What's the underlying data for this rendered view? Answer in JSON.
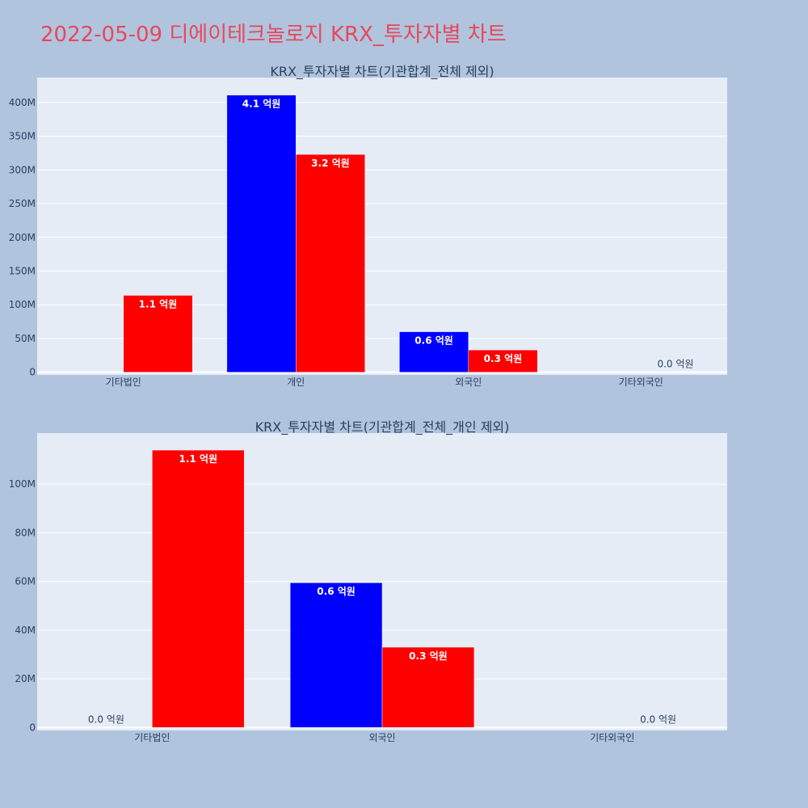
{
  "page": {
    "title": "2022-05-09 디에이테크놀로지 KRX_투자자별 차트",
    "title_color": "#e8485a",
    "background": "#b0c4de"
  },
  "chart_data": [
    {
      "type": "bar",
      "title": "KRX_투자자별 차트(기관합계_전체 제외)",
      "categories": [
        "기타법인",
        "개인",
        "외국인",
        "기타외국인"
      ],
      "y_ticks": [
        0,
        50000000,
        100000000,
        150000000,
        200000000,
        250000000,
        300000000,
        350000000,
        400000000
      ],
      "y_tick_labels": [
        "0",
        "50M",
        "100M",
        "150M",
        "200M",
        "250M",
        "300M",
        "350M",
        "400M"
      ],
      "ylim": [
        -4000000,
        437000000
      ],
      "grid": true,
      "plot_bg": "#e5ecf6",
      "series": [
        {
          "color": "#0000ff",
          "values": [
            0,
            411000000,
            60000000,
            0
          ],
          "labels": [
            "",
            "4.1 억원",
            "0.6 억원",
            ""
          ]
        },
        {
          "color": "#ff0000",
          "values": [
            114000000,
            323000000,
            33000000,
            0
          ],
          "labels": [
            "1.1 억원",
            "3.2 억원",
            "0.3 억원",
            "0.0 억원"
          ]
        }
      ]
    },
    {
      "type": "bar",
      "title": "KRX_투자자별 차트(기관합계_전체_개인 제외)",
      "categories": [
        "기타법인",
        "외국인",
        "기타외국인"
      ],
      "y_ticks": [
        0,
        20000000,
        40000000,
        60000000,
        80000000,
        100000000
      ],
      "y_tick_labels": [
        "0",
        "20M",
        "40M",
        "60M",
        "80M",
        "100M"
      ],
      "ylim": [
        -1200000,
        121000000
      ],
      "grid": true,
      "plot_bg": "#e5ecf6",
      "series": [
        {
          "color": "#0000ff",
          "values": [
            0,
            59500000,
            0
          ],
          "labels": [
            "0.0 억원",
            "0.6 억원",
            ""
          ]
        },
        {
          "color": "#ff0000",
          "values": [
            114000000,
            33000000,
            0
          ],
          "labels": [
            "1.1 억원",
            "0.3 억원",
            "0.0 억원"
          ]
        }
      ]
    }
  ]
}
